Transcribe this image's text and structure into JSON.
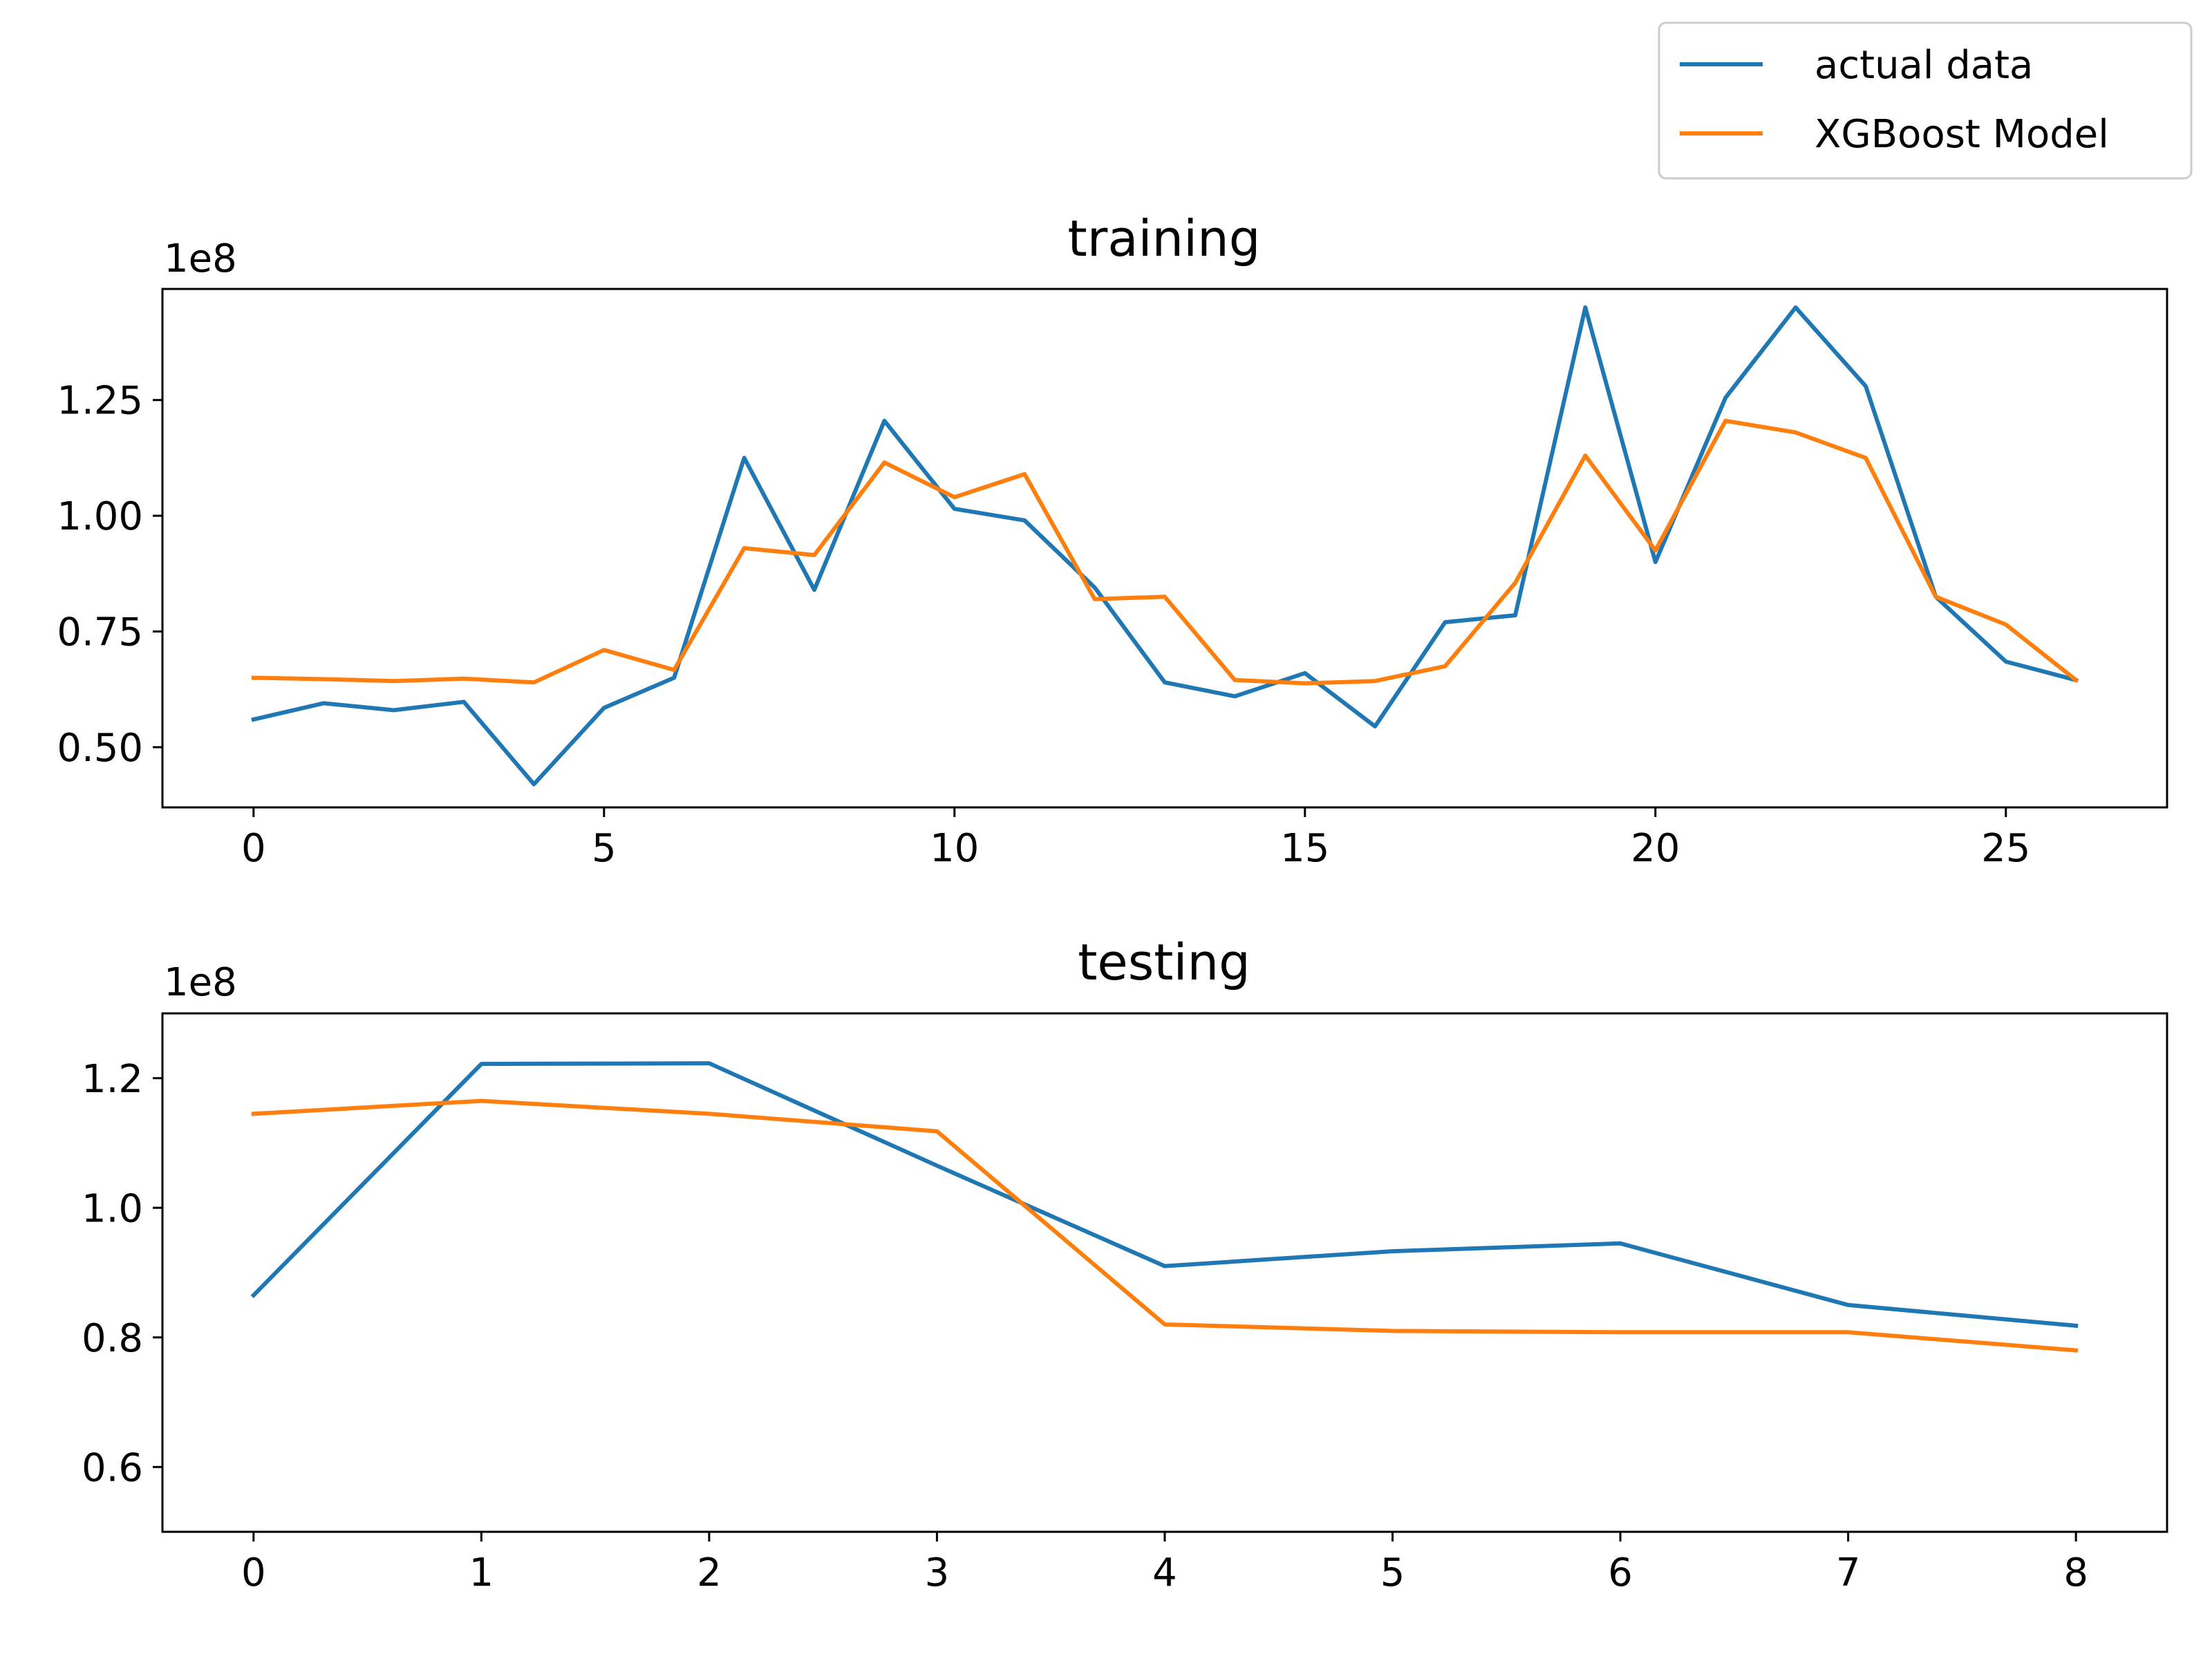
{
  "legend": {
    "entries": [
      {
        "label": "actual data",
        "color": "#1f77b4"
      },
      {
        "label": "XGBoost Model",
        "color": "#ff7f0e"
      }
    ]
  },
  "chart_data": [
    {
      "type": "line",
      "title": "training",
      "xlabel": "",
      "ylabel": "",
      "y_offset_label": "1e8",
      "xlim": [
        -1.3,
        27.3
      ],
      "ylim": [
        0.37,
        1.49
      ],
      "xticks": [
        0,
        5,
        10,
        15,
        20,
        25
      ],
      "yticks": [
        0.5,
        0.75,
        1.0,
        1.25
      ],
      "ytick_labels": [
        "0.50",
        "0.75",
        "1.00",
        "1.25"
      ],
      "grid": false,
      "legend_position": "upper right, outside plot",
      "x": [
        0,
        1,
        2,
        3,
        4,
        5,
        6,
        7,
        8,
        9,
        10,
        11,
        12,
        13,
        14,
        15,
        16,
        17,
        18,
        19,
        20,
        21,
        22,
        23,
        24,
        25,
        26
      ],
      "series": [
        {
          "name": "actual data",
          "color": "#1f77b4",
          "values": [
            0.56,
            0.595,
            0.58,
            0.598,
            0.42,
            0.585,
            0.65,
            1.125,
            0.84,
            1.205,
            1.015,
            0.99,
            0.845,
            0.64,
            0.61,
            0.66,
            0.545,
            0.77,
            0.785,
            1.45,
            0.9,
            1.255,
            1.45,
            1.28,
            0.825,
            0.685,
            0.645
          ]
        },
        {
          "name": "XGBoost Model",
          "color": "#ff7f0e",
          "values": [
            0.65,
            0.647,
            0.643,
            0.648,
            0.64,
            0.71,
            0.667,
            0.93,
            0.915,
            1.115,
            1.04,
            1.09,
            0.82,
            0.825,
            0.645,
            0.638,
            0.643,
            0.675,
            0.855,
            1.13,
            0.925,
            1.205,
            1.18,
            1.125,
            0.825,
            0.765,
            0.645
          ]
        }
      ]
    },
    {
      "type": "line",
      "title": "testing",
      "xlabel": "",
      "ylabel": "",
      "y_offset_label": "1e8",
      "xlim": [
        -0.4,
        8.4
      ],
      "ylim": [
        0.5,
        1.3
      ],
      "xticks": [
        0,
        1,
        2,
        3,
        4,
        5,
        6,
        7,
        8
      ],
      "yticks": [
        0.6,
        0.8,
        1.0,
        1.2
      ],
      "ytick_labels": [
        "0.6",
        "0.8",
        "1.0",
        "1.2"
      ],
      "grid": false,
      "x": [
        0,
        1,
        2,
        3,
        4,
        5,
        6,
        7,
        8
      ],
      "series": [
        {
          "name": "actual data",
          "color": "#1f77b4",
          "values": [
            0.865,
            1.222,
            1.223,
            1.065,
            0.91,
            0.933,
            0.945,
            0.85,
            0.818
          ]
        },
        {
          "name": "XGBoost Model",
          "color": "#ff7f0e",
          "values": [
            1.145,
            1.165,
            1.145,
            1.118,
            0.82,
            0.81,
            0.808,
            0.808,
            0.78
          ]
        }
      ]
    }
  ]
}
